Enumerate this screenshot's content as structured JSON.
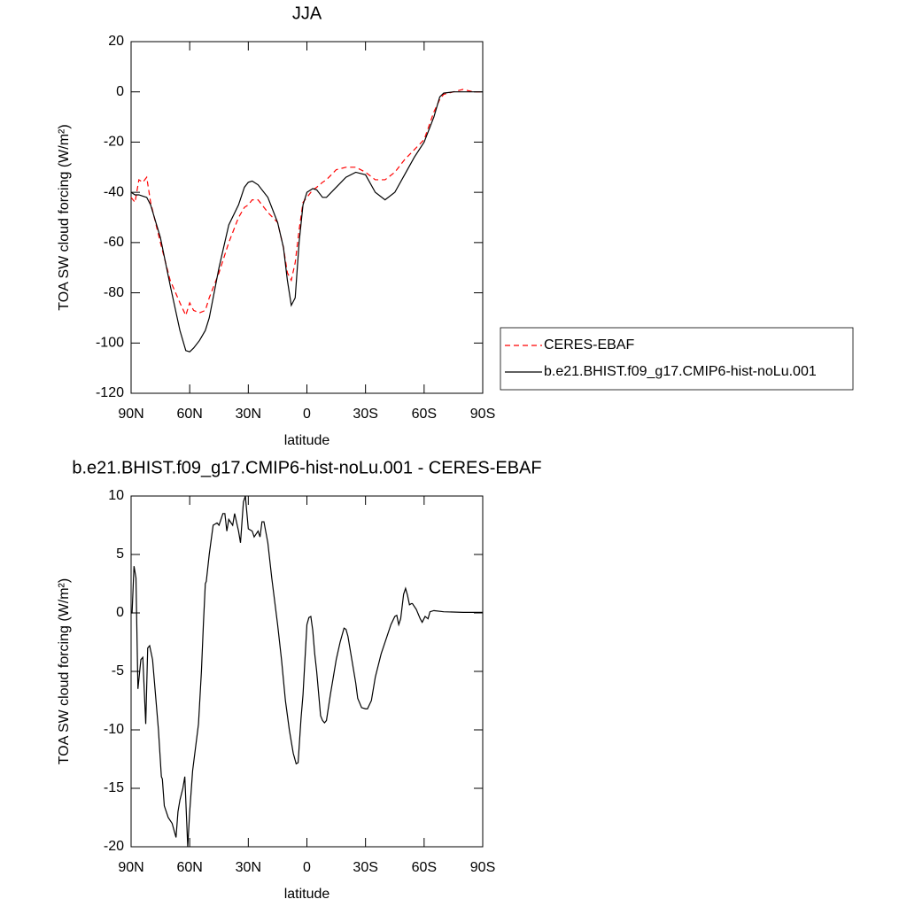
{
  "chart_data": [
    {
      "type": "line",
      "title": "JJA",
      "xlabel": "latitude",
      "ylabel": "TOA SW cloud forcing (W/m²)",
      "x": [
        90,
        88,
        86,
        84,
        82,
        80,
        75,
        70,
        65,
        62,
        60,
        58,
        55,
        52,
        50,
        45,
        40,
        35,
        32,
        30,
        28,
        25,
        20,
        15,
        12,
        10,
        8,
        6,
        4,
        2,
        0,
        -3,
        -5,
        -8,
        -10,
        -15,
        -20,
        -25,
        -30,
        -35,
        -40,
        -45,
        -50,
        -55,
        -60,
        -65,
        -68,
        -70,
        -75,
        -80,
        -85,
        -90
      ],
      "xlim": [
        90,
        -90
      ],
      "xticks": [
        {
          "value": 90,
          "label": "90N"
        },
        {
          "value": 60,
          "label": "60N"
        },
        {
          "value": 30,
          "label": "30N"
        },
        0,
        {
          "value": -30,
          "label": "30S"
        },
        {
          "value": -60,
          "label": "60S"
        },
        {
          "value": -90,
          "label": "90S"
        }
      ],
      "ylim": [
        -120,
        20
      ],
      "yticks": [
        -120,
        -100,
        -80,
        -60,
        -40,
        -20,
        0,
        20
      ],
      "legend": "right",
      "series": [
        {
          "name": "CERES-EBAF",
          "color": "#ff0000",
          "line_style": "dashed",
          "values": [
            -42,
            -44,
            -35,
            -36,
            -34,
            -44,
            -60,
            -75,
            -84,
            -89,
            -84,
            -87,
            -88,
            -87,
            -82,
            -72,
            -60,
            -50,
            -46,
            -45,
            -43,
            -43,
            -48,
            -52,
            -62,
            -72,
            -75,
            -68,
            -55,
            -44,
            -42,
            -39,
            -38,
            -36,
            -35,
            -31,
            -30,
            -30,
            -32,
            -35,
            -35,
            -32,
            -27,
            -23,
            -19,
            -8,
            -3,
            -1,
            0,
            1,
            0,
            0
          ]
        },
        {
          "name": "b.e21.BHIST.f09_g17.CMIP6-hist-noLu.001",
          "color": "#000000",
          "line_style": "solid",
          "values": [
            -40,
            -41,
            -41,
            -41.5,
            -42,
            -45,
            -58,
            -77,
            -95,
            -103,
            -103.5,
            -102,
            -99,
            -95,
            -90,
            -70,
            -53,
            -45,
            -38,
            -36,
            -35.5,
            -37,
            -42,
            -52,
            -62,
            -75,
            -85,
            -82,
            -60,
            -45,
            -40,
            -38.5,
            -39,
            -42,
            -42,
            -38,
            -34,
            -32,
            -33,
            -40,
            -43,
            -40,
            -33,
            -26,
            -20,
            -10,
            -2,
            -0.5,
            0,
            0,
            0,
            0
          ]
        }
      ]
    },
    {
      "type": "line",
      "title": "b.e21.BHIST.f09_g17.CMIP6-hist-noLu.001 - CERES-EBAF",
      "xlabel": "latitude",
      "ylabel": "TOA SW cloud forcing (W/m²)",
      "x": [
        90,
        89.5,
        88.5,
        87.5,
        86.5,
        85,
        84,
        82.5,
        81.5,
        80.5,
        79,
        78,
        76,
        74.5,
        74,
        73,
        71,
        69,
        67,
        66,
        65,
        63.5,
        62.5,
        61,
        60,
        58.5,
        57,
        55.5,
        54,
        53,
        52,
        51.5,
        50,
        48,
        46,
        45,
        43,
        42,
        41,
        40,
        38,
        37,
        35,
        34,
        32.5,
        31.5,
        30,
        28,
        27,
        25,
        24,
        23,
        22,
        20,
        18,
        15,
        13,
        11,
        9,
        7,
        5.5,
        4.5,
        3,
        2,
        1,
        0,
        -1,
        -2,
        -3,
        -4,
        -5,
        -7,
        -8,
        -9,
        -10,
        -12,
        -15,
        -17,
        -19,
        -20,
        -21,
        -23,
        -25,
        -26,
        -28,
        -30,
        -31,
        -33,
        -35,
        -38,
        -41,
        -43,
        -45,
        -46,
        -47,
        -48,
        -49.5,
        -50.5,
        -51.5,
        -52.5,
        -53.5,
        -54,
        -56,
        -58,
        -59,
        -60.5,
        -62,
        -63,
        -65,
        -70,
        -80,
        -90
      ],
      "xlim": [
        90,
        -90
      ],
      "xticks": [
        {
          "value": 90,
          "label": "90N"
        },
        {
          "value": 60,
          "label": "60N"
        },
        {
          "value": 30,
          "label": "30N"
        },
        0,
        {
          "value": -30,
          "label": "30S"
        },
        {
          "value": -60,
          "label": "60S"
        },
        {
          "value": -90,
          "label": "90S"
        }
      ],
      "ylim": [
        -20,
        10
      ],
      "yticks": [
        -20,
        -15,
        -10,
        -5,
        0,
        5,
        10
      ],
      "series": [
        {
          "color": "#000000",
          "line_style": "solid",
          "values": [
            0,
            0,
            4,
            3,
            -6.5,
            -4,
            -3.8,
            -9.5,
            -3,
            -2.8,
            -4,
            -6,
            -10,
            -14,
            -14.2,
            -16.5,
            -17.5,
            -18,
            -19.2,
            -17,
            -16,
            -15,
            -14,
            -20,
            -17,
            -13.5,
            -11.5,
            -9.5,
            -5,
            -1,
            2.5,
            2.7,
            5,
            7.5,
            7.7,
            7.5,
            8.5,
            8.5,
            7,
            8,
            7.5,
            8.5,
            7,
            6,
            9.5,
            10,
            7.2,
            7,
            6.5,
            7,
            6.5,
            7.8,
            7.8,
            6,
            3,
            -1,
            -4,
            -7.5,
            -10,
            -12,
            -12.9,
            -12.8,
            -9,
            -7,
            -4,
            -1,
            -0.4,
            -0.3,
            -1.5,
            -3.5,
            -5,
            -8.8,
            -9.2,
            -9.4,
            -9.2,
            -7,
            -4,
            -2.5,
            -1.3,
            -1.4,
            -2,
            -4,
            -6,
            -7.3,
            -8.1,
            -8.2,
            -8.2,
            -7.5,
            -5.5,
            -3.5,
            -2,
            -1,
            -0.3,
            -0.2,
            -1,
            -0.5,
            1.6,
            2.1,
            1.5,
            0.7,
            0.8,
            0.8,
            0.3,
            -0.5,
            -0.8,
            -0.3,
            -0.5,
            0.1,
            0.2,
            0.1,
            0.05,
            0.05
          ]
        }
      ]
    }
  ]
}
